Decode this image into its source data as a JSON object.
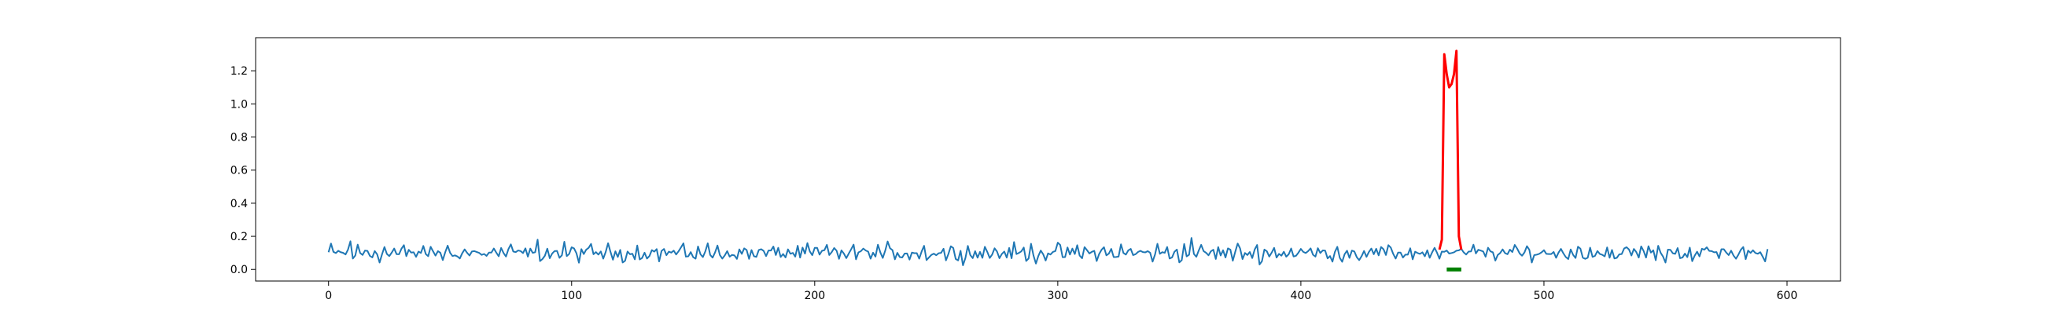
{
  "chart_data": {
    "type": "line",
    "title": "",
    "xlabel": "",
    "ylabel": "",
    "xlim": [
      -30,
      622
    ],
    "ylim": [
      -0.07,
      1.4
    ],
    "x_ticks": [
      0,
      100,
      200,
      300,
      400,
      500,
      600
    ],
    "x_tick_labels": [
      "0",
      "100",
      "200",
      "300",
      "400",
      "500",
      "600"
    ],
    "y_ticks": [
      0.0,
      0.2,
      0.4,
      0.6,
      0.8,
      1.0,
      1.2
    ],
    "y_tick_labels": [
      "0.0",
      "0.2",
      "0.4",
      "0.6",
      "0.8",
      "1.0",
      "1.2"
    ],
    "grid": false,
    "legend": "none",
    "series": [
      {
        "color": "#1f77b4",
        "description": "noisy baseline signal, x 0 to 592, values ~0.02-0.20 (drawn as generated noise around 0.10)",
        "x_range": [
          0,
          592
        ],
        "baseline": 0.1,
        "amplitude": 0.05
      },
      {
        "color": "#ff0000",
        "x": [
          457,
          458,
          459,
          460,
          461,
          462,
          463,
          464,
          465,
          466
        ],
        "y": [
          0.12,
          0.18,
          1.3,
          1.18,
          1.1,
          1.12,
          1.18,
          1.32,
          0.2,
          0.12
        ]
      },
      {
        "color": "#008000",
        "x": [
          460,
          466
        ],
        "y": [
          0.0,
          0.0
        ]
      }
    ]
  }
}
